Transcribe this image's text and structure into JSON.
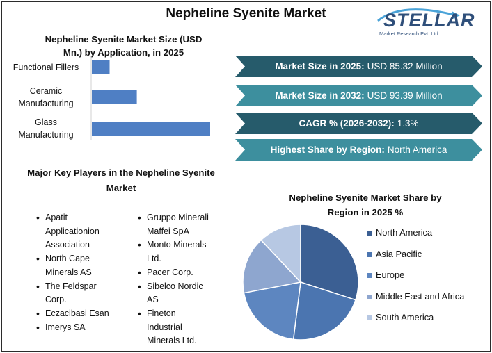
{
  "page": {
    "title": "Nepheline Syenite Market",
    "logo": {
      "brand": "STELLAR",
      "tagline": "Market Research Pvt. Ltd."
    }
  },
  "bar_section": {
    "title_line1": "Nepheline Syenite Market Size (USD",
    "title_line2": "Mn.) by Application, in 2025"
  },
  "banners": [
    {
      "label": "Market Size in 2025:",
      "value": "USD 85.32 Million",
      "color": "#265b6b"
    },
    {
      "label": "Market Size in 2032:",
      "value": "USD 93.39 Million",
      "color": "#3d8f9e"
    },
    {
      "label": "CAGR % (2026-2032):",
      "value": "1.3%",
      "color": "#265b6b"
    },
    {
      "label": "Highest Share by Region:",
      "value": "North America",
      "color": "#3d8f9e"
    }
  ],
  "key_players": {
    "title_line1": "Major Key Players in the Nepheline Syenite",
    "title_line2": "Market",
    "col1": [
      [
        "Apatit",
        "Applicationion",
        "Association"
      ],
      [
        "North Cape",
        "Minerals AS"
      ],
      [
        "The Feldspar",
        "Corp."
      ],
      [
        "Eczacibasi Esan"
      ],
      [
        "Imerys SA"
      ]
    ],
    "col2": [
      [
        "Gruppo Minerali",
        "Maffei SpA"
      ],
      [
        "Monto Minerals",
        "Ltd."
      ],
      [
        "Pacer Corp."
      ],
      [
        "Sibelco Nordic",
        "AS"
      ],
      [
        "Fineton",
        "Industrial",
        "Minerals Ltd."
      ]
    ]
  },
  "pie_section": {
    "title_line1": "Nepheline Syenite Market Share by",
    "title_line2": "Region in 2025 %"
  },
  "chart_data": [
    {
      "type": "bar",
      "orientation": "horizontal",
      "categories": [
        "Functional Fillers",
        "Ceramic Manufacturing",
        "Glass Manufacturing"
      ],
      "category_lines": [
        [
          "Functional Fillers"
        ],
        [
          "Ceramic",
          "Manufacturing"
        ],
        [
          "Glass",
          "Manufacturing"
        ]
      ],
      "values": [
        15,
        38,
        100
      ],
      "xlim": [
        0,
        100
      ],
      "grid": false,
      "axis_labels_shown": false,
      "color": "#4f7fc4"
    },
    {
      "type": "pie",
      "labels": [
        "North America",
        "Asia Pacific",
        "Europe",
        "Middle East and Africa",
        "South America"
      ],
      "values": [
        30,
        22,
        20,
        16,
        12
      ],
      "colors": [
        "#3b5f93",
        "#4b75b0",
        "#5d86c0",
        "#8ea6cf",
        "#b7c8e3"
      ],
      "legend": "right"
    }
  ]
}
